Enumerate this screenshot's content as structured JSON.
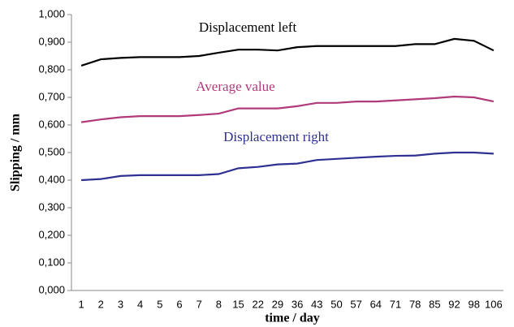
{
  "chart_data": {
    "type": "line",
    "x_label": "time / day",
    "y_label": "Slipping / mm",
    "categories": [
      "1",
      "2",
      "3",
      "4",
      "5",
      "6",
      "7",
      "8",
      "15",
      "22",
      "29",
      "36",
      "43",
      "50",
      "57",
      "64",
      "71",
      "78",
      "85",
      "92",
      "98",
      "106"
    ],
    "series": [
      {
        "name": "Displacement left",
        "color": "#000000",
        "values": [
          0.815,
          0.838,
          0.843,
          0.846,
          0.846,
          0.846,
          0.85,
          0.862,
          0.873,
          0.873,
          0.87,
          0.882,
          0.886,
          0.886,
          0.886,
          0.886,
          0.886,
          0.893,
          0.893,
          0.912,
          0.905,
          0.87
        ]
      },
      {
        "name": "Average value",
        "color": "#b03a7a",
        "values": [
          0.61,
          0.62,
          0.628,
          0.632,
          0.632,
          0.632,
          0.636,
          0.641,
          0.66,
          0.66,
          0.66,
          0.668,
          0.68,
          0.68,
          0.685,
          0.685,
          0.689,
          0.693,
          0.697,
          0.703,
          0.7,
          0.685
        ]
      },
      {
        "name": "Displacement right",
        "color": "#2e3192",
        "values": [
          0.4,
          0.404,
          0.415,
          0.418,
          0.418,
          0.418,
          0.418,
          0.422,
          0.443,
          0.448,
          0.457,
          0.46,
          0.473,
          0.477,
          0.481,
          0.485,
          0.488,
          0.489,
          0.496,
          0.5,
          0.5,
          0.496
        ]
      }
    ],
    "ylim": [
      0,
      1
    ],
    "yticks": [
      {
        "value": 0,
        "label": "0,000"
      },
      {
        "value": 0.1,
        "label": "0,100"
      },
      {
        "value": 0.2,
        "label": "0,200"
      },
      {
        "value": 0.3,
        "label": "0,300"
      },
      {
        "value": 0.4,
        "label": "0,400"
      },
      {
        "value": 0.5,
        "label": "0,500"
      },
      {
        "value": 0.6,
        "label": "0,600"
      },
      {
        "value": 0.7,
        "label": "0,700"
      },
      {
        "value": 0.8,
        "label": "0,800"
      },
      {
        "value": 0.9,
        "label": "0,900"
      },
      {
        "value": 1,
        "label": "1,000"
      }
    ],
    "grid": false
  }
}
